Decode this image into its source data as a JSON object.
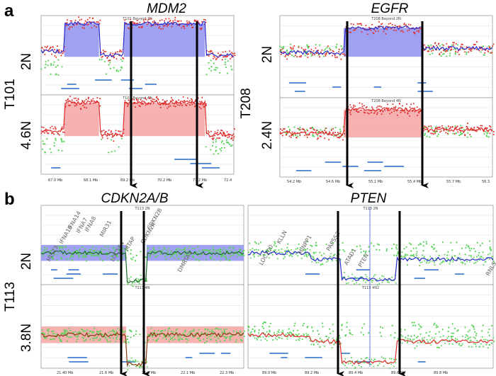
{
  "figure": {
    "panels": [
      {
        "letter": "a"
      },
      {
        "letter": "b"
      }
    ],
    "genes": [
      "MDM2",
      "EGFR",
      "CDKN2A/B",
      "PTEN"
    ],
    "samples": [
      "T101",
      "T208",
      "T113"
    ],
    "ploidy": {
      "T101_top": "2N",
      "T101_bottom": "4.6N",
      "T208_top": "2N",
      "T208_bottom": "2.4N",
      "T113_top": "2N",
      "T113_bottom": "3.8N"
    },
    "plot_titles": {
      "mdm2_top": "T101 Beyond 2N",
      "mdm2_bottom": "T101 Beyond 4N",
      "egfr_top": "T208 Beyond 2N",
      "egfr_bottom": "T208 Beyond 4N",
      "cdkn_top": "T113 2N",
      "cdkn_bottom": "T113 4N",
      "pten_top": "T113 2N",
      "pten_bottom": "T113 4N2"
    },
    "axes": {
      "mdm2": [
        "67.0 Mb",
        "68.1 Mb",
        "69.2 Mb",
        "70.2 Mb",
        "71.2 Mb",
        "72.4"
      ],
      "egfr": [
        "54.2 Mb",
        "54.6 Mb",
        "55.1 Mb",
        "55.4 Mb",
        "55.7 Mb",
        "56.3"
      ],
      "cdkn": [
        "21.40 Mb",
        "21.6 Mb",
        "21.9 Mb",
        "22.1 Mb",
        "22.3 Mb"
      ],
      "pten": [
        "89.0 Mb",
        "89.2 Mb",
        "89.4 Mb",
        "89.6 Mb",
        "89.8 Mb"
      ]
    },
    "gene_annotations": {
      "cdkn_top": [
        "IFNA14",
        "IFNA7",
        "IFNA8",
        "IFNA16",
        "MLLT3",
        "MTAP",
        "CDKN2A",
        "CDKN2B",
        "DMRTA1",
        "MIR31",
        "LOC554"
      ],
      "pten": [
        "LOC100",
        "KLLN",
        "ATAD1",
        "PAPSS2",
        "MINPP1",
        "PTEN",
        "RNLS"
      ]
    },
    "colors": {
      "normal_fill": "#8f90f0",
      "normal_line": "#2a2ad0",
      "normal_dot": "#e0302a",
      "amp_fill": "#f4a3a3",
      "amp_line": "#e02b2b",
      "green_dot": "#5ad35a",
      "arrow": "#000000"
    }
  }
}
